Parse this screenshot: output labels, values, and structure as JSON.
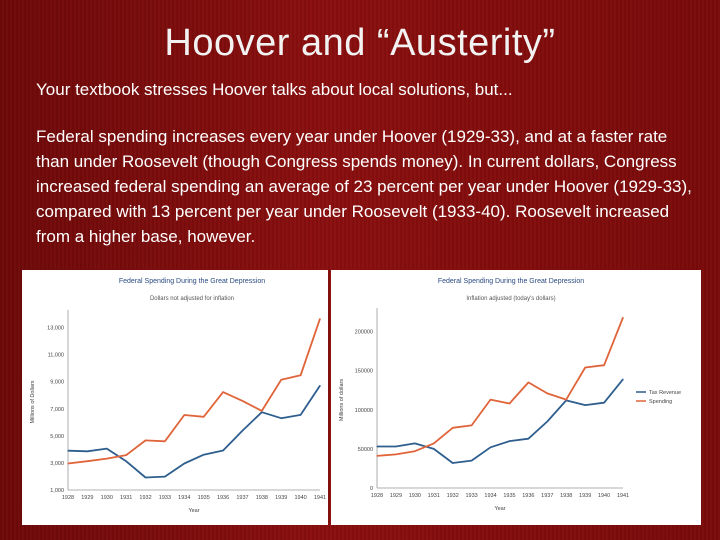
{
  "slide": {
    "title": "Hoover and “Austerity”",
    "subtitle": "Your textbook stresses Hoover talks about local solutions, but...",
    "body": "Federal spending increases every year under Hoover (1929-33), and at a faster rate than under Roosevelt (though Congress spends money). In current dollars, Congress increased federal spending an average of 23 percent per year under Hoover (1929-33), compared with 13 percent per year under Roosevelt (1933-40). Roosevelt increased from a higher base, however."
  },
  "colors": {
    "background": "#7d0b0b",
    "tax_revenue": "#2e5e8e",
    "spending": "#e0643a",
    "text": "#ffffff"
  },
  "chart_data": [
    {
      "type": "line",
      "title": "Federal Spending During the Great Depression",
      "subtitle": "Dollars not adjusted for inflation",
      "xlabel": "Year",
      "ylabel": "Millions of Dollars",
      "x": [
        "1928",
        "1929",
        "1930",
        "1931",
        "1932",
        "1933",
        "1934",
        "1935",
        "1936",
        "1937",
        "1938",
        "1939",
        "1940",
        "1941"
      ],
      "ylim": [
        1000,
        14000
      ],
      "yticks": [
        "1,000",
        "3,000",
        "5,000",
        "7,000",
        "9,000",
        "11,000",
        "13,000"
      ],
      "grid": false,
      "series": [
        {
          "values": [
            3900,
            3860,
            4060,
            3120,
            1920,
            1990,
            2960,
            3610,
            3920,
            5390,
            6750,
            6300,
            6550,
            8710
          ]
        },
        {
          "values": [
            2960,
            3130,
            3320,
            3580,
            4660,
            4600,
            6540,
            6410,
            8230,
            7580,
            6840,
            9140,
            9470,
            13650
          ]
        }
      ]
    },
    {
      "type": "line",
      "title": "Federal Spending During the Great Depression",
      "subtitle": "Inflation adjusted (today's dollars)",
      "xlabel": "Year",
      "ylabel": "Millions of dollars",
      "x": [
        "1928",
        "1929",
        "1930",
        "1931",
        "1932",
        "1933",
        "1934",
        "1935",
        "1936",
        "1937",
        "1938",
        "1939",
        "1940",
        "1941"
      ],
      "ylim": [
        0,
        225000
      ],
      "yticks": [
        "0",
        "50000",
        "100000",
        "150000",
        "200000"
      ],
      "grid": false,
      "legend": "right",
      "series": [
        {
          "name": "Tax Revenue",
          "values": [
            53000,
            53000,
            57000,
            50000,
            32000,
            35000,
            52000,
            60000,
            63000,
            85000,
            112000,
            106000,
            109000,
            139000
          ]
        },
        {
          "name": "Spending",
          "values": [
            41000,
            43000,
            47000,
            57000,
            77000,
            80000,
            113000,
            108000,
            135000,
            121000,
            113000,
            154000,
            157000,
            218000
          ]
        }
      ]
    }
  ]
}
